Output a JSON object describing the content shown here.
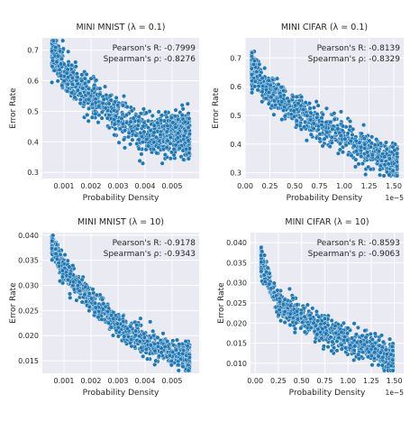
{
  "figure": {
    "background": "#ffffff",
    "axes_facecolor": "#eaeaf2",
    "grid_color": "#ffffff",
    "point_color": "#1f77b4"
  },
  "chart_data": [
    {
      "type": "scatter",
      "title": "MINI MNIST (λ = 0.1)",
      "xlabel": "Probability Density",
      "ylabel": "Error Rate",
      "xlim": [
        0.0002,
        0.006
      ],
      "ylim": [
        0.28,
        0.74
      ],
      "xticks": [
        0.001,
        0.002,
        0.003,
        0.004,
        0.005
      ],
      "xtick_labels": [
        "0.001",
        "0.002",
        "0.003",
        "0.004",
        "0.005"
      ],
      "yticks": [
        0.3,
        0.4,
        0.5,
        0.6,
        0.7
      ],
      "ytick_labels": [
        "0.3",
        "0.4",
        "0.5",
        "0.6",
        "0.7"
      ],
      "x_offset_label": "",
      "grid": true,
      "stats": [
        "Pearson's R: -0.7999",
        "Spearman's ρ: -0.8276"
      ],
      "series": [
        {
          "n_points": 1200,
          "x_range": [
            0.0005,
            0.0057
          ],
          "curve": [
            [
              0.0005,
              0.72
            ],
            [
              0.001,
              0.62
            ],
            [
              0.002,
              0.54
            ],
            [
              0.003,
              0.48
            ],
            [
              0.004,
              0.42
            ],
            [
              0.0057,
              0.43
            ]
          ],
          "spread": 0.06
        }
      ]
    },
    {
      "type": "scatter",
      "title": "MINI CIFAR (λ = 0.1)",
      "xlabel": "Probability Density",
      "ylabel": "Error Rate",
      "xlim": [
        0.0,
        1.6e-05
      ],
      "ylim": [
        0.28,
        0.77
      ],
      "xticks": [
        0,
        2.5e-06,
        5e-06,
        7.5e-06,
        1e-05,
        1.25e-05,
        1.5e-05
      ],
      "xtick_labels": [
        "0.00",
        "0.25",
        "0.50",
        "0.75",
        "1.00",
        "1.25",
        "1.50"
      ],
      "yticks": [
        0.3,
        0.4,
        0.5,
        0.6,
        0.7
      ],
      "ytick_labels": [
        "0.3",
        "0.4",
        "0.5",
        "0.6",
        "0.7"
      ],
      "x_offset_label": "1e−5",
      "grid": true,
      "stats": [
        "Pearson's R: -0.8139",
        "Spearman's ρ: -0.8329"
      ],
      "series": [
        {
          "n_points": 1200,
          "x_range": [
            5e-07,
            1.55e-05
          ],
          "curve": [
            [
              5e-07,
              0.68
            ],
            [
              2.5e-06,
              0.58
            ],
            [
              5e-06,
              0.52
            ],
            [
              7.5e-06,
              0.47
            ],
            [
              1e-05,
              0.42
            ],
            [
              1.25e-05,
              0.38
            ],
            [
              1.5e-05,
              0.33
            ]
          ],
          "spread": 0.05
        }
      ]
    },
    {
      "type": "scatter",
      "title": "MINI MNIST (λ = 10)",
      "xlabel": "Probability Density",
      "ylabel": "Error Rate",
      "xlim": [
        0.0002,
        0.006
      ],
      "ylim": [
        0.0125,
        0.0405
      ],
      "xticks": [
        0.001,
        0.002,
        0.003,
        0.004,
        0.005
      ],
      "xtick_labels": [
        "0.001",
        "0.002",
        "0.003",
        "0.004",
        "0.005"
      ],
      "yticks": [
        0.015,
        0.02,
        0.025,
        0.03,
        0.035,
        0.04
      ],
      "ytick_labels": [
        "0.015",
        "0.020",
        "0.025",
        "0.030",
        "0.035",
        "0.040"
      ],
      "x_offset_label": "",
      "grid": true,
      "stats": [
        "Pearson's R: -0.9178",
        "Spearman's ρ: -0.9343"
      ],
      "series": [
        {
          "n_points": 1200,
          "x_range": [
            0.0005,
            0.0057
          ],
          "curve": [
            [
              0.0005,
              0.0385
            ],
            [
              0.001,
              0.033
            ],
            [
              0.002,
              0.027
            ],
            [
              0.003,
              0.022
            ],
            [
              0.004,
              0.0185
            ],
            [
              0.0057,
              0.0155
            ]
          ],
          "spread": 0.0022
        }
      ]
    },
    {
      "type": "scatter",
      "title": "MINI CIFAR (λ = 10)",
      "xlabel": "Probability Density",
      "ylabel": "Error Rate",
      "xlim": [
        -5e-07,
        1.6e-05
      ],
      "ylim": [
        0.0075,
        0.0425
      ],
      "xticks": [
        0,
        2.5e-06,
        5e-06,
        7.5e-06,
        1e-05,
        1.25e-05,
        1.5e-05
      ],
      "xtick_labels": [
        "0.00",
        "0.25",
        "0.50",
        "0.75",
        "1.00",
        "1.25",
        "1.50"
      ],
      "yticks": [
        0.01,
        0.015,
        0.02,
        0.025,
        0.03,
        0.035,
        0.04
      ],
      "ytick_labels": [
        "0.010",
        "0.015",
        "0.020",
        "0.025",
        "0.030",
        "0.035",
        "0.040"
      ],
      "x_offset_label": "1e−5",
      "grid": true,
      "stats": [
        "Pearson's R: -0.8593",
        "Spearman's ρ: -0.9063"
      ],
      "series": [
        {
          "n_points": 1200,
          "x_range": [
            5e-07,
            1.5e-05
          ],
          "curve": [
            [
              5e-07,
              0.036
            ],
            [
              2.5e-06,
              0.025
            ],
            [
              5e-06,
              0.021
            ],
            [
              7.5e-06,
              0.018
            ],
            [
              1e-05,
              0.0155
            ],
            [
              1.25e-05,
              0.0135
            ],
            [
              1.5e-05,
              0.011
            ]
          ],
          "spread": 0.003
        }
      ]
    }
  ]
}
